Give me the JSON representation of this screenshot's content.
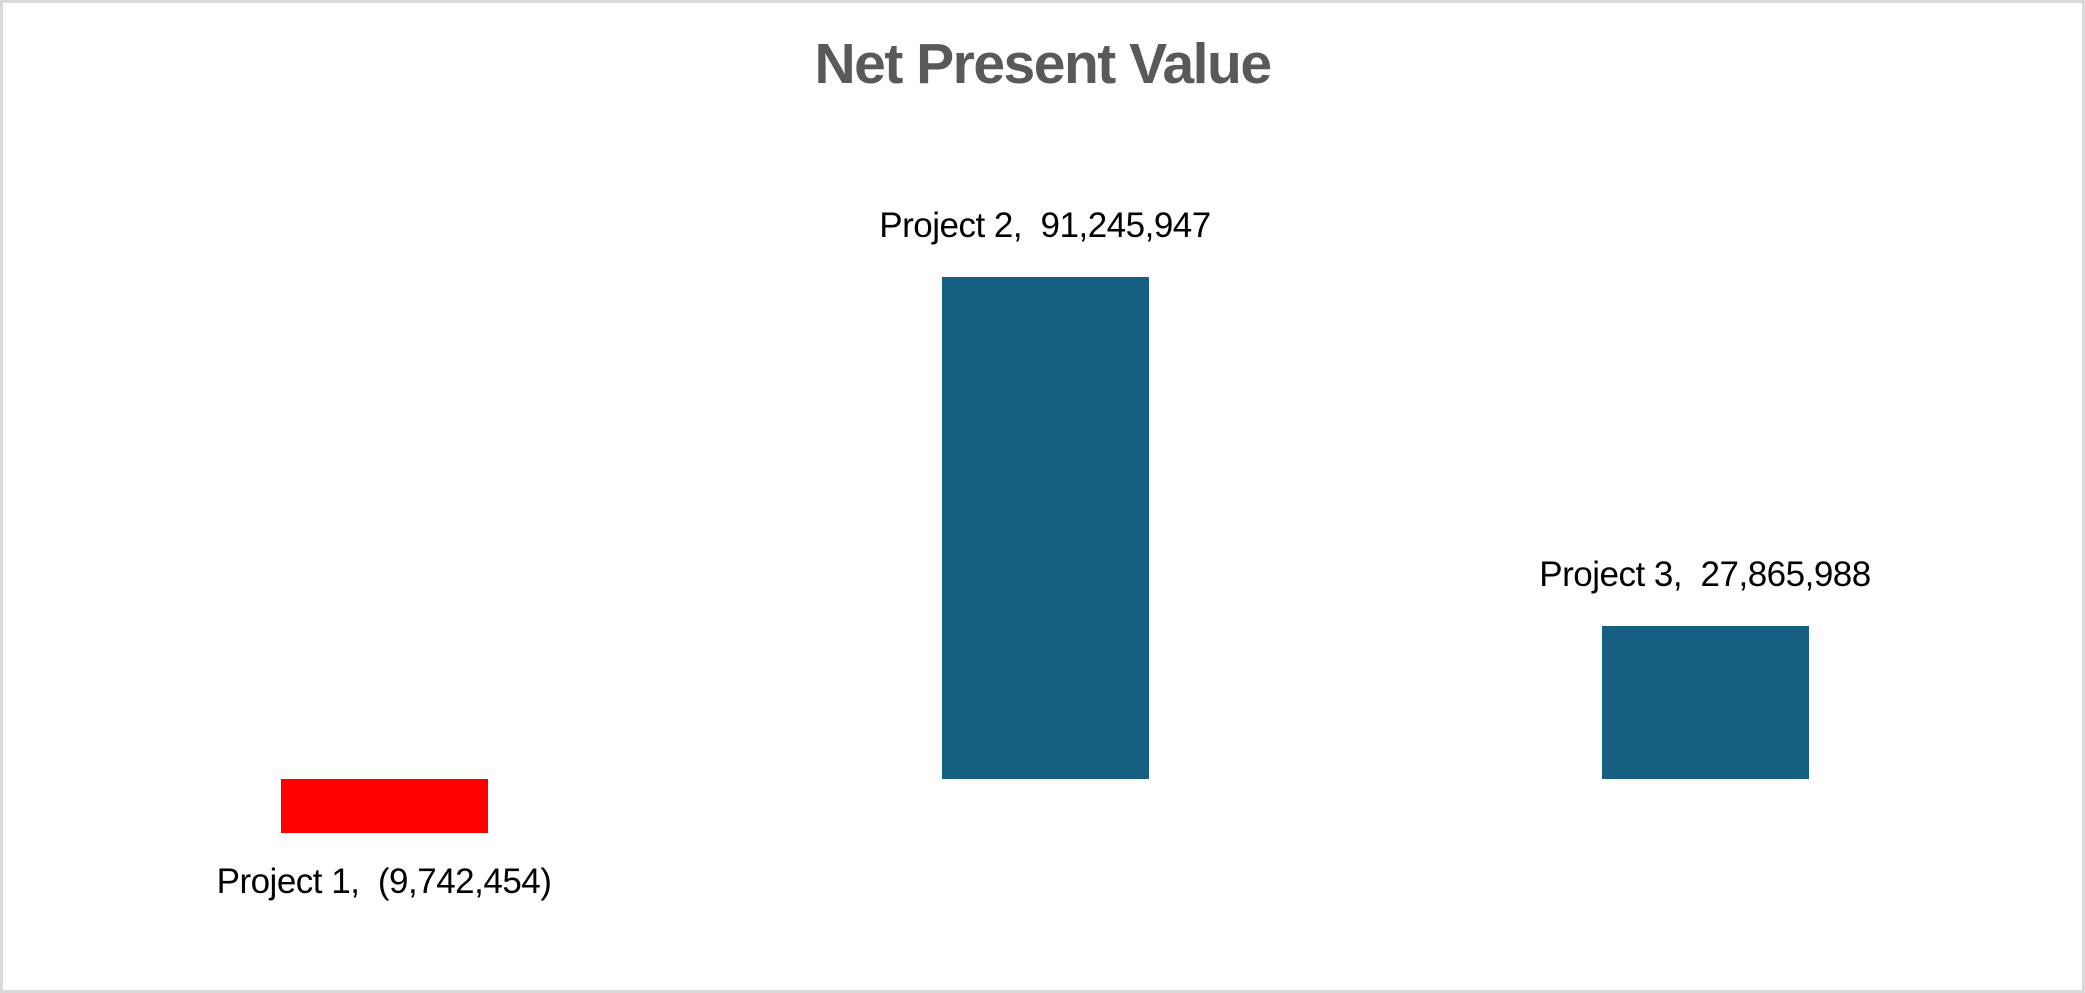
{
  "chart_data": {
    "type": "bar",
    "title": "Net Present Value",
    "categories": [
      "Project 1",
      "Project 2",
      "Project 3"
    ],
    "values": [
      -9742454,
      91245947,
      27865988
    ],
    "point_labels": [
      "Project 1,  (9,742,454)",
      "Project 2,  91,245,947",
      "Project 3,  27,865,988"
    ],
    "colors": [
      "#FF0000",
      "#156082",
      "#156082"
    ],
    "xlabel": "",
    "ylabel": "",
    "legend": "none",
    "gridlines": false,
    "axes_visible": false,
    "negative_format": "parentheses",
    "title_color": "#595959",
    "label_color": "#000000",
    "positive_bar_color": "#156082",
    "negative_bar_color": "#FF0000",
    "frame_border_color": "#D9D9D9",
    "background": "#FFFFFF"
  }
}
